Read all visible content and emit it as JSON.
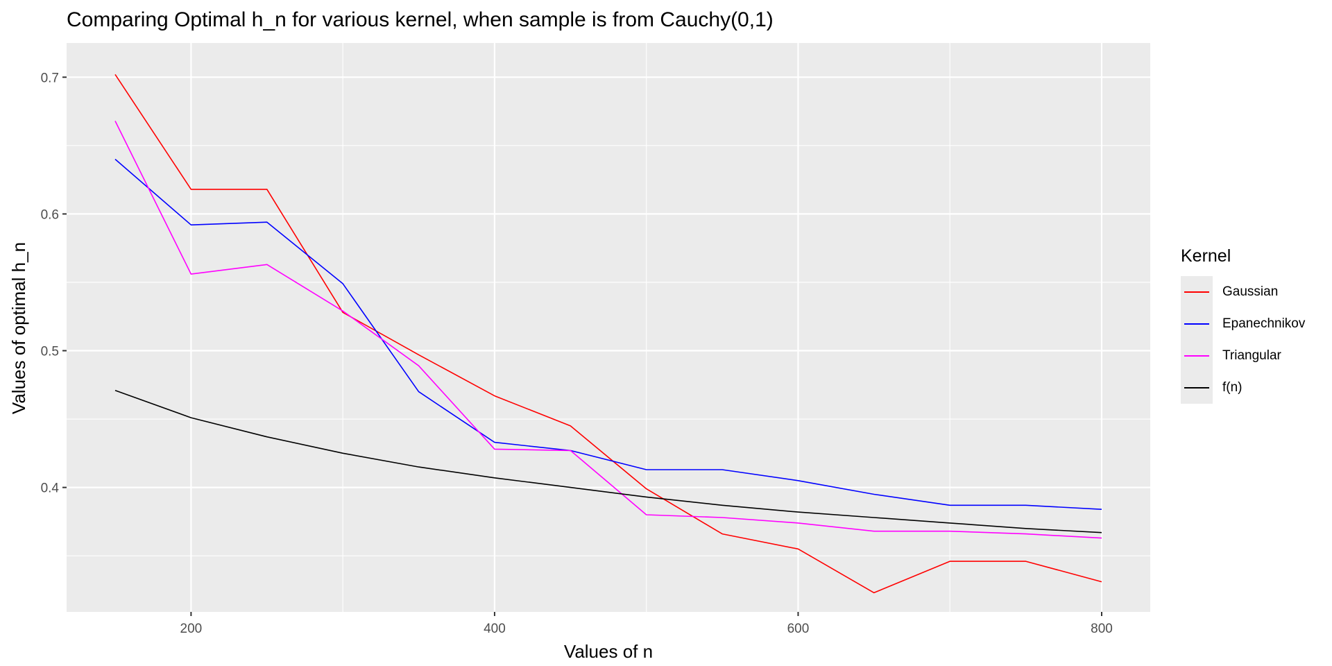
{
  "chart_data": {
    "type": "line",
    "title": "Comparing Optimal h_n for various kernel, when sample is from Cauchy(0,1)",
    "xlabel": "Values of n",
    "ylabel": "Values of optimal h_n",
    "xlim": [
      118,
      832
    ],
    "ylim": [
      0.309,
      0.725
    ],
    "x_ticks": [
      200,
      400,
      600,
      800
    ],
    "y_ticks": [
      0.4,
      0.5,
      0.6,
      0.7
    ],
    "x_tick_labels": [
      "200",
      "400",
      "600",
      "800"
    ],
    "y_tick_labels": [
      "0.4",
      "0.5",
      "0.6",
      "0.7"
    ],
    "grid": true,
    "legend": {
      "title": "Kernel",
      "position": "right"
    },
    "x": [
      150,
      200,
      250,
      300,
      350,
      400,
      450,
      500,
      550,
      600,
      650,
      700,
      750,
      800
    ],
    "series": [
      {
        "name": "Gaussian",
        "color": "#ff0000",
        "values": [
          0.702,
          0.618,
          0.618,
          0.528,
          0.497,
          0.467,
          0.445,
          0.399,
          0.366,
          0.355,
          0.323,
          0.346,
          0.346,
          0.331
        ]
      },
      {
        "name": "Epanechnikov",
        "color": "#0000ff",
        "values": [
          0.64,
          0.592,
          0.594,
          0.549,
          0.47,
          0.433,
          0.427,
          0.413,
          0.413,
          0.405,
          0.395,
          0.387,
          0.387,
          0.384
        ]
      },
      {
        "name": "Triangular",
        "color": "#ff00ff",
        "values": [
          0.668,
          0.556,
          0.563,
          0.529,
          0.489,
          0.428,
          0.427,
          0.38,
          0.378,
          0.374,
          0.368,
          0.368,
          0.366,
          0.363
        ]
      },
      {
        "name": "f(n)",
        "color": "#000000",
        "values": [
          0.471,
          0.451,
          0.437,
          0.425,
          0.415,
          0.407,
          0.4,
          0.393,
          0.387,
          0.382,
          0.378,
          0.374,
          0.37,
          0.367
        ]
      }
    ]
  }
}
